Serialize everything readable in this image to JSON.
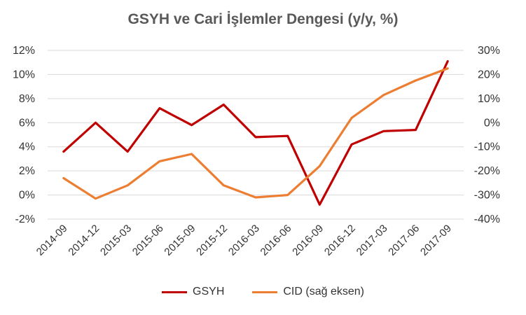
{
  "chart_data": {
    "type": "line",
    "title": "GSYH ve Cari İşlemler Dengesi (y/y, %)",
    "categories": [
      "2014-09",
      "2014-12",
      "2015-03",
      "2015-06",
      "2015-09",
      "2015-12",
      "2016-03",
      "2016-06",
      "2016-09",
      "2016-12",
      "2017-03",
      "2017-06",
      "2017-09"
    ],
    "y_left": {
      "ylim": [
        -2,
        12
      ],
      "ticks": [
        "-2%",
        "0%",
        "2%",
        "4%",
        "6%",
        "8%",
        "10%",
        "12%"
      ],
      "tick_values": [
        -2,
        0,
        2,
        4,
        6,
        8,
        10,
        12
      ]
    },
    "y_right": {
      "ylim": [
        -40,
        30
      ],
      "ticks": [
        "-40%",
        "-30%",
        "-20%",
        "-10%",
        "0%",
        "10%",
        "20%",
        "30%"
      ],
      "tick_values": [
        -40,
        -30,
        -20,
        -10,
        0,
        10,
        20,
        30
      ]
    },
    "grid": true,
    "legend_position": "bottom",
    "series": [
      {
        "name": "GSYH",
        "axis": "left",
        "color": "#C00000",
        "values": [
          3.6,
          6.0,
          3.6,
          7.2,
          5.8,
          7.5,
          4.8,
          4.9,
          -0.8,
          4.2,
          5.3,
          5.4,
          11.1
        ]
      },
      {
        "name": "CID (sağ eksen)",
        "axis": "right",
        "color": "#ED7D31",
        "values": [
          -23,
          -31.5,
          -26,
          -16,
          -13,
          -26,
          -31,
          -30,
          -18,
          2,
          11.5,
          17.5,
          22.5
        ]
      }
    ]
  }
}
